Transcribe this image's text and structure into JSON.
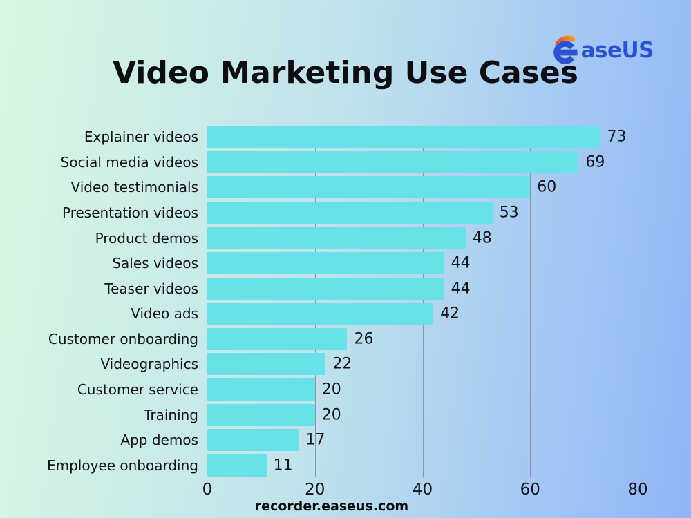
{
  "header": {
    "title": "Video Marketing Use Cases",
    "logo_text": "aseUS",
    "logo_colors": {
      "blue": "#2b53cf",
      "swoosh_red": "#e23b2a",
      "swoosh_orange": "#f9b31c"
    }
  },
  "footer": {
    "text": "recorder.easeus.com"
  },
  "chart_data": {
    "type": "bar",
    "orientation": "horizontal",
    "title": "Video Marketing Use Cases",
    "categories": [
      "Explainer videos",
      "Social media videos",
      "Video testimonials",
      "Presentation videos",
      "Product demos",
      "Sales videos",
      "Teaser videos",
      "Video ads",
      "Customer onboarding",
      "Videographics",
      "Customer service",
      "Training",
      "App demos",
      "Employee onboarding"
    ],
    "values": [
      73,
      69,
      60,
      53,
      48,
      44,
      44,
      42,
      26,
      22,
      20,
      20,
      17,
      11
    ],
    "xlabel": "",
    "ylabel": "",
    "xlim": [
      0,
      80
    ],
    "xticks": [
      0,
      20,
      40,
      60,
      80
    ],
    "grid": true,
    "legend": false,
    "bar_color": "#68e2e8",
    "gridline_color": "#8b95a5",
    "background_gradient": [
      "#d9f8e2",
      "#bfe2ec",
      "#90b5f8"
    ]
  }
}
